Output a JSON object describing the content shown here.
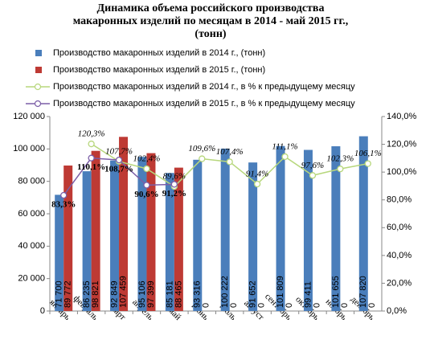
{
  "chart_data": {
    "type": "bar-line",
    "title": [
      "Динамика объема российского производства",
      "макаронных изделий по месяцам в 2014 - май 2015 гг.,",
      "(тонн)"
    ],
    "categories": [
      "январь",
      "февраль",
      "март",
      "апрель",
      "май",
      "июнь",
      "июль",
      "август",
      "сентябрь",
      "октябрь",
      "ноябрь",
      "декабрь"
    ],
    "series": [
      {
        "name": "Производство макаронных изделий в 2014 г., (тонн)",
        "type": "bar",
        "color": "#4a7ebb",
        "values": [
          71700,
          86235,
          92849,
          95106,
          85181,
          93316,
          100222,
          91652,
          101809,
          99411,
          101655,
          107820
        ],
        "value_labels": [
          "71 700",
          "86 235",
          "92 849",
          "95 106",
          "85 181",
          "93 316",
          "100 222",
          "91 652",
          "101 809",
          "99 411",
          "101 655",
          "107 820"
        ]
      },
      {
        "name": "Производство макаронных изделий в 2015 г., (тонн)",
        "type": "bar",
        "color": "#be3a34",
        "values": [
          89772,
          98821,
          107459,
          97399,
          88465,
          0,
          0,
          0,
          0,
          0,
          0,
          0
        ],
        "value_labels": [
          "89 772",
          "98 821",
          "107 459",
          "97 399",
          "88 465",
          "0",
          "0",
          "0",
          "0",
          "0",
          "0",
          "0"
        ]
      },
      {
        "name": "Производство макаронных изделий в 2014 г., в % к предыдущему месяцу",
        "type": "line",
        "axis": "y2",
        "color": "#b7d77c",
        "values": [
          null,
          120.3,
          107.7,
          102.4,
          89.6,
          109.6,
          107.4,
          91.4,
          111.1,
          97.6,
          102.3,
          106.1
        ],
        "value_labels": [
          null,
          "120,3%",
          "107,7%",
          "102,4%",
          "89,6%",
          "109,6%",
          "107,4%",
          "91,4%",
          "111,1%",
          "97,6%",
          "102,3%",
          "106,1%"
        ]
      },
      {
        "name": "Производство макаронных изделий в 2015 г., в % к предыдущему месяцу",
        "type": "line",
        "axis": "y2",
        "color": "#7b5ea7",
        "values": [
          83.3,
          110.1,
          108.7,
          90.6,
          91.2,
          null,
          null,
          null,
          null,
          null,
          null,
          null
        ],
        "value_labels": [
          "83,3%",
          "110,1%",
          "108,7%",
          "90,6%",
          "91,2%",
          null,
          null,
          null,
          null,
          null,
          null,
          null
        ]
      }
    ],
    "ylim": [
      0,
      120000
    ],
    "yticks": [
      0,
      {
        "value": 20000,
        "label": "20 000"
      },
      {
        "value": 40000,
        "label": "40 000"
      },
      {
        "value": 60000,
        "label": "60 000"
      },
      {
        "value": 80000,
        "label": "80 000"
      },
      {
        "value": 100000,
        "label": "100 000"
      },
      {
        "value": 120000,
        "label": "120 000"
      }
    ],
    "y2lim": [
      0,
      140
    ],
    "y2ticks": [
      {
        "value": 0,
        "label": "0,0%"
      },
      {
        "value": 20,
        "label": "20,0%"
      },
      {
        "value": 40,
        "label": "40,0%"
      },
      {
        "value": 60,
        "label": "60,0%"
      },
      {
        "value": 80,
        "label": "80,0%"
      },
      {
        "value": 100,
        "label": "100,0%"
      },
      {
        "value": 120,
        "label": "120,0%"
      },
      {
        "value": 140,
        "label": "140,0%"
      }
    ],
    "grid": false,
    "legend": "top"
  }
}
